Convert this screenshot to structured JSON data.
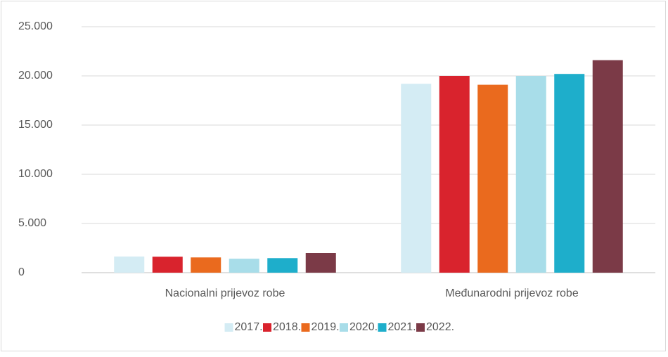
{
  "chart_data": {
    "type": "bar",
    "categories": [
      "Nacionalni prijevoz robe",
      "Međunarodni prijevoz robe"
    ],
    "series": [
      {
        "name": "2017.",
        "color": "#d4ecf4",
        "values": [
          1640,
          19200
        ]
      },
      {
        "name": "2018.",
        "color": "#d9232d",
        "values": [
          1620,
          20000
        ]
      },
      {
        "name": "2019.",
        "color": "#ea6a1e",
        "values": [
          1550,
          19100
        ]
      },
      {
        "name": "2020.",
        "color": "#a8dde9",
        "values": [
          1420,
          20000
        ]
      },
      {
        "name": "2021.",
        "color": "#1eaecb",
        "values": [
          1480,
          20200
        ]
      },
      {
        "name": "2022.",
        "color": "#7b3a47",
        "values": [
          2000,
          21600
        ]
      }
    ],
    "ylim": [
      0,
      25000
    ],
    "yticks": [
      0,
      {
        "value": 5000,
        "label": "5.000"
      },
      {
        "value": 10000,
        "label": "10.000"
      },
      {
        "value": 15000,
        "label": "15.000"
      },
      {
        "value": 20000,
        "label": "20.000"
      },
      {
        "value": 25000,
        "label": "25.000"
      }
    ],
    "grid": true,
    "legend": "bottom"
  }
}
